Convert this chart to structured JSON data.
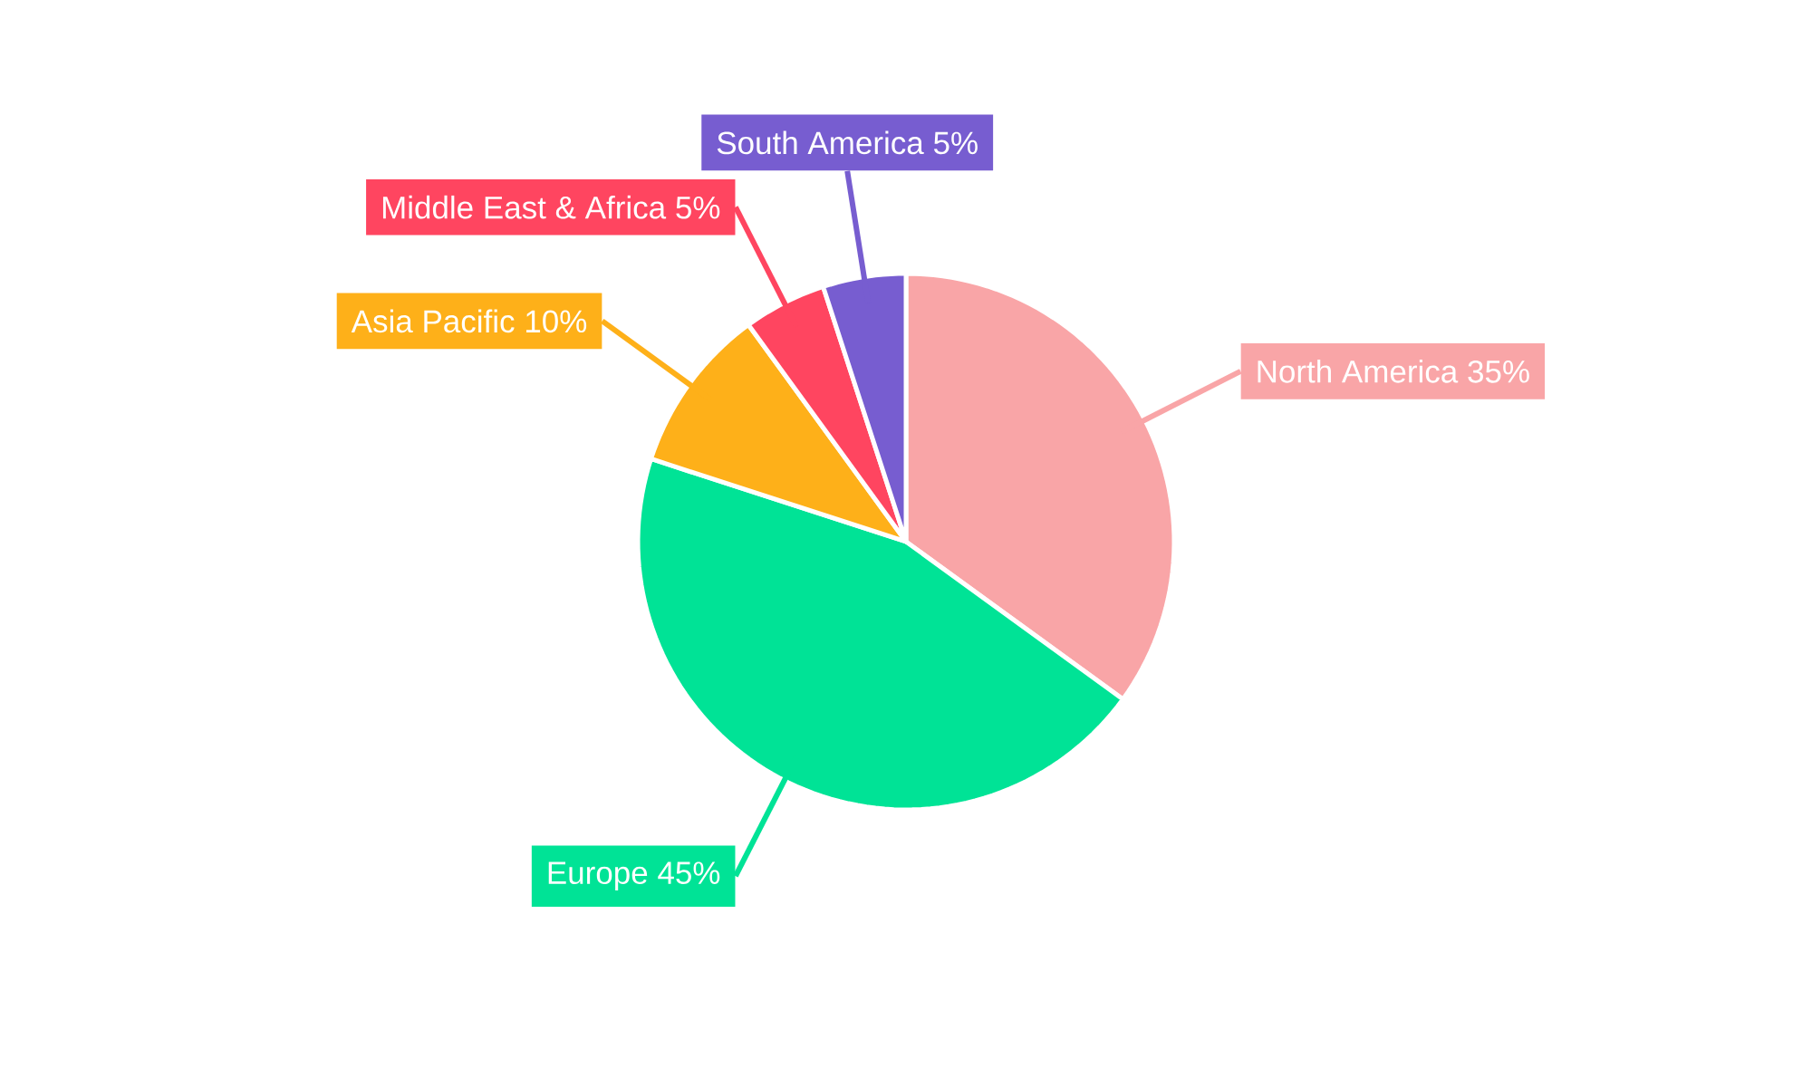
{
  "chart_data": {
    "type": "pie",
    "categories": [
      "North America",
      "Europe",
      "Asia Pacific",
      "Middle East & Africa",
      "South America"
    ],
    "values": [
      35,
      45,
      10,
      5,
      5
    ],
    "value_labels": [
      "35%",
      "45%",
      "10%",
      "5%",
      "5%"
    ],
    "colors": [
      "#f9a5a7",
      "#00e396",
      "#feb019",
      "#ff4560",
      "#775dd0"
    ],
    "legend": false
  }
}
